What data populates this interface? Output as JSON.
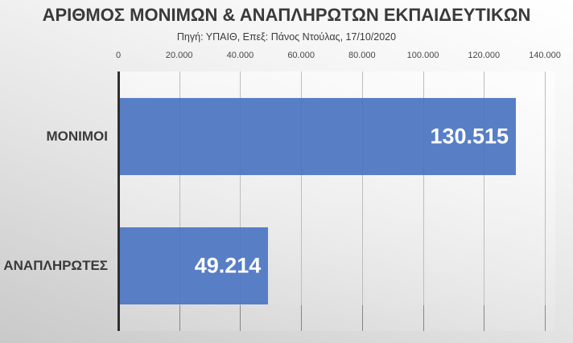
{
  "chart_data": {
    "type": "bar",
    "orientation": "horizontal",
    "title": "ΑΡΙΘΜΟΣ ΜΟΝΙΜΩΝ & ΑΝΑΠΛΗΡΩΤΩΝ ΕΚΠΑΙΔΕΥΤΙΚΩΝ",
    "subtitle": "Πηγή: ΥΠΑΙΘ, Επεξ: Πάνος Ντούλας, 17/10/2020",
    "categories": [
      "ΜΟΝΙΜΟΙ",
      "ΑΝΑΠΛΗΡΩΤΕΣ"
    ],
    "values": [
      130515,
      49214
    ],
    "value_labels": [
      "130.515",
      "49.214"
    ],
    "xlabel": "",
    "ylabel": "",
    "xlim": [
      0,
      140000
    ],
    "x_tick_values": [
      0,
      20000,
      40000,
      60000,
      80000,
      100000,
      120000,
      140000
    ],
    "x_tick_labels": [
      "0",
      "20.000",
      "40.000",
      "60.000",
      "80.000",
      "100.000",
      "120.000",
      "140.000"
    ],
    "grid": true,
    "legend": false,
    "axis_position": "top",
    "colors": {
      "bar": "#587ec6",
      "data_label": "#ffffff",
      "gridline": "#c6c6c6",
      "axis_line": "#2f2f2f",
      "text": "#3a3a3a"
    }
  }
}
